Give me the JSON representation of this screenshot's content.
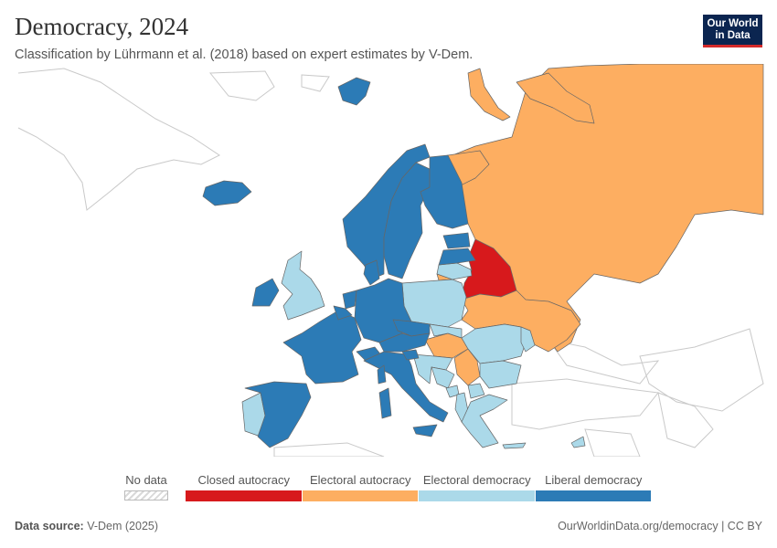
{
  "header": {
    "title": "Democracy, 2024",
    "subtitle": "Classification by Lührmann et al. (2018) based on expert estimates by V-Dem.",
    "logo_line1": "Our World",
    "logo_line2": "in Data"
  },
  "colors": {
    "closed_autocracy": "#d7191c",
    "electoral_autocracy": "#fdae61",
    "electoral_democracy": "#abd9e9",
    "liberal_democracy": "#2c7bb6",
    "no_data_border": "#bbbbbb",
    "country_outline": "#666666",
    "outside_fill": "#ffffff",
    "outside_border": "#c9c9c9"
  },
  "legend": {
    "no_data": "No data",
    "items": [
      {
        "key": "closed_autocracy",
        "label": "Closed autocracy"
      },
      {
        "key": "electoral_autocracy",
        "label": "Electoral autocracy"
      },
      {
        "key": "electoral_democracy",
        "label": "Electoral democracy"
      },
      {
        "key": "liberal_democracy",
        "label": "Liberal democracy"
      }
    ]
  },
  "map": {
    "countries": [
      {
        "name": "Russia",
        "category": "electoral_autocracy"
      },
      {
        "name": "Russia-Kola",
        "category": "electoral_autocracy"
      },
      {
        "name": "Novaya-Zemlya",
        "category": "electoral_autocracy"
      },
      {
        "name": "Russia-Siberia-North",
        "category": "electoral_autocracy"
      },
      {
        "name": "Kaliningrad",
        "category": "electoral_autocracy"
      },
      {
        "name": "Belarus",
        "category": "closed_autocracy"
      },
      {
        "name": "Ukraine",
        "category": "electoral_autocracy"
      },
      {
        "name": "Hungary",
        "category": "electoral_autocracy"
      },
      {
        "name": "Serbia",
        "category": "electoral_autocracy"
      },
      {
        "name": "Poland",
        "category": "electoral_democracy"
      },
      {
        "name": "United Kingdom",
        "category": "electoral_democracy"
      },
      {
        "name": "Portugal",
        "category": "electoral_democracy"
      },
      {
        "name": "Lithuania",
        "category": "electoral_democracy"
      },
      {
        "name": "Slovakia",
        "category": "electoral_democracy"
      },
      {
        "name": "Romania",
        "category": "electoral_democracy"
      },
      {
        "name": "Bulgaria",
        "category": "electoral_democracy"
      },
      {
        "name": "Croatia",
        "category": "electoral_democracy"
      },
      {
        "name": "Bosnia",
        "category": "electoral_democracy"
      },
      {
        "name": "Montenegro",
        "category": "electoral_democracy"
      },
      {
        "name": "Albania",
        "category": "electoral_democracy"
      },
      {
        "name": "North Macedonia",
        "category": "electoral_democracy"
      },
      {
        "name": "Greece",
        "category": "electoral_democracy"
      },
      {
        "name": "Cyprus",
        "category": "electoral_democracy"
      },
      {
        "name": "Moldova",
        "category": "electoral_democracy"
      },
      {
        "name": "Crete",
        "category": "electoral_democracy"
      },
      {
        "name": "Norway",
        "category": "liberal_democracy"
      },
      {
        "name": "Sweden",
        "category": "liberal_democracy"
      },
      {
        "name": "Finland",
        "category": "liberal_democracy"
      },
      {
        "name": "Estonia",
        "category": "liberal_democracy"
      },
      {
        "name": "Latvia",
        "category": "liberal_democracy"
      },
      {
        "name": "Denmark",
        "category": "liberal_democracy"
      },
      {
        "name": "Ireland",
        "category": "liberal_democracy"
      },
      {
        "name": "Iceland",
        "category": "liberal_democracy"
      },
      {
        "name": "Svalbard",
        "category": "liberal_democracy"
      },
      {
        "name": "France",
        "category": "liberal_democracy"
      },
      {
        "name": "Spain",
        "category": "liberal_democracy"
      },
      {
        "name": "Germany",
        "category": "liberal_democracy"
      },
      {
        "name": "Netherlands",
        "category": "liberal_democracy"
      },
      {
        "name": "Belgium",
        "category": "liberal_democracy"
      },
      {
        "name": "Czechia",
        "category": "liberal_democracy"
      },
      {
        "name": "Austria",
        "category": "liberal_democracy"
      },
      {
        "name": "Switzerland",
        "category": "liberal_democracy"
      },
      {
        "name": "Italy",
        "category": "liberal_democracy"
      },
      {
        "name": "Sicily",
        "category": "liberal_democracy"
      },
      {
        "name": "Sardinia",
        "category": "liberal_democracy"
      },
      {
        "name": "Corsica",
        "category": "liberal_democracy"
      },
      {
        "name": "Slovenia",
        "category": "liberal_democracy"
      }
    ]
  },
  "footer": {
    "source_label": "Data source:",
    "source_value": "V-Dem (2025)",
    "link": "OurWorldinData.org/democracy | CC BY"
  }
}
